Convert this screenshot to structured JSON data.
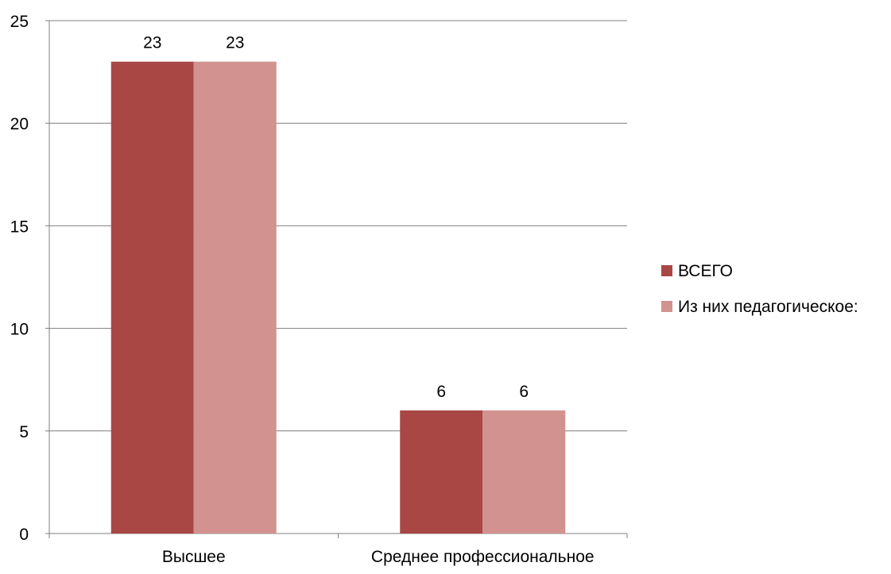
{
  "chart_data": {
    "type": "bar",
    "categories": [
      "Высшее",
      "Среднее профессиональное"
    ],
    "series": [
      {
        "name": "ВСЕГО",
        "values": [
          23,
          6
        ],
        "color": "#a94745"
      },
      {
        "name": "Из них педагогическое:",
        "values": [
          23,
          6
        ],
        "color": "#d29290"
      }
    ],
    "data_labels": [
      [
        "23",
        "6"
      ],
      [
        "23",
        "6"
      ]
    ],
    "ylim": [
      0,
      25
    ],
    "yticks": [
      0,
      5,
      10,
      15,
      20,
      25
    ],
    "grid": true,
    "legend_position": "right",
    "gridline_color": "#7f7f7f",
    "title": "",
    "xlabel": "",
    "ylabel": ""
  }
}
